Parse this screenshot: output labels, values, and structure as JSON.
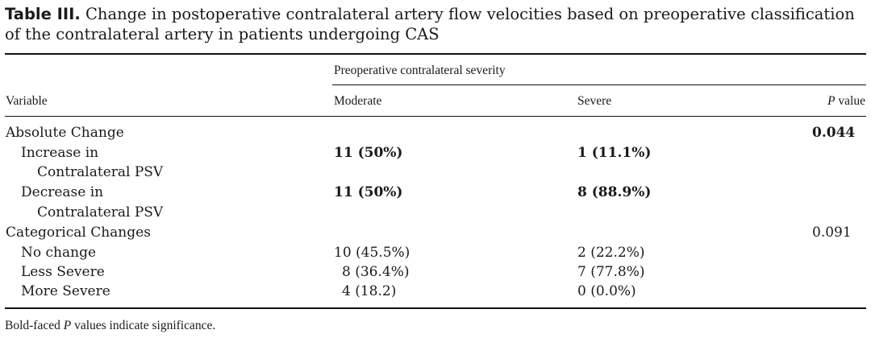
{
  "caption": {
    "label": "Table III.",
    "text": " Change in postoperative contralateral artery flow velocities based on preoperative classification of the contralateral artery in patients undergoing CAS"
  },
  "table": {
    "group_header": "Preoperative contralateral severity",
    "col_variable": "Variable",
    "col_moderate": "Moderate",
    "col_severe": "Severe",
    "col_p_italic": "P",
    "col_p_rest": " value",
    "rows": [
      {
        "variable": "Absolute Change",
        "moderate": "",
        "severe": "",
        "p": "0.044",
        "p_bold": true
      },
      {
        "variable": "Increase in",
        "variable_cont": "Contralateral PSV",
        "moderate": "11 (50%)",
        "severe": "1 (11.1%)",
        "bold": true
      },
      {
        "variable": "Decrease in",
        "variable_cont": "Contralateral PSV",
        "moderate": "11 (50%)",
        "severe": "8 (88.9%)",
        "bold": true
      },
      {
        "variable": "Categorical Changes",
        "moderate": "",
        "severe": "",
        "p": "0.091"
      },
      {
        "variable": "No change",
        "moderate": "10 (45.5%)",
        "severe": "2 (22.2%)"
      },
      {
        "variable": "Less Severe",
        "moderate": "8 (36.4%)",
        "severe": "7 (77.8%)"
      },
      {
        "variable": "More Severe",
        "moderate": "4 (18.2)",
        "severe": "0 (0.0%)"
      }
    ]
  },
  "footnote": {
    "pre": "Bold-faced ",
    "italic": "P",
    "post": " values indicate significance."
  }
}
